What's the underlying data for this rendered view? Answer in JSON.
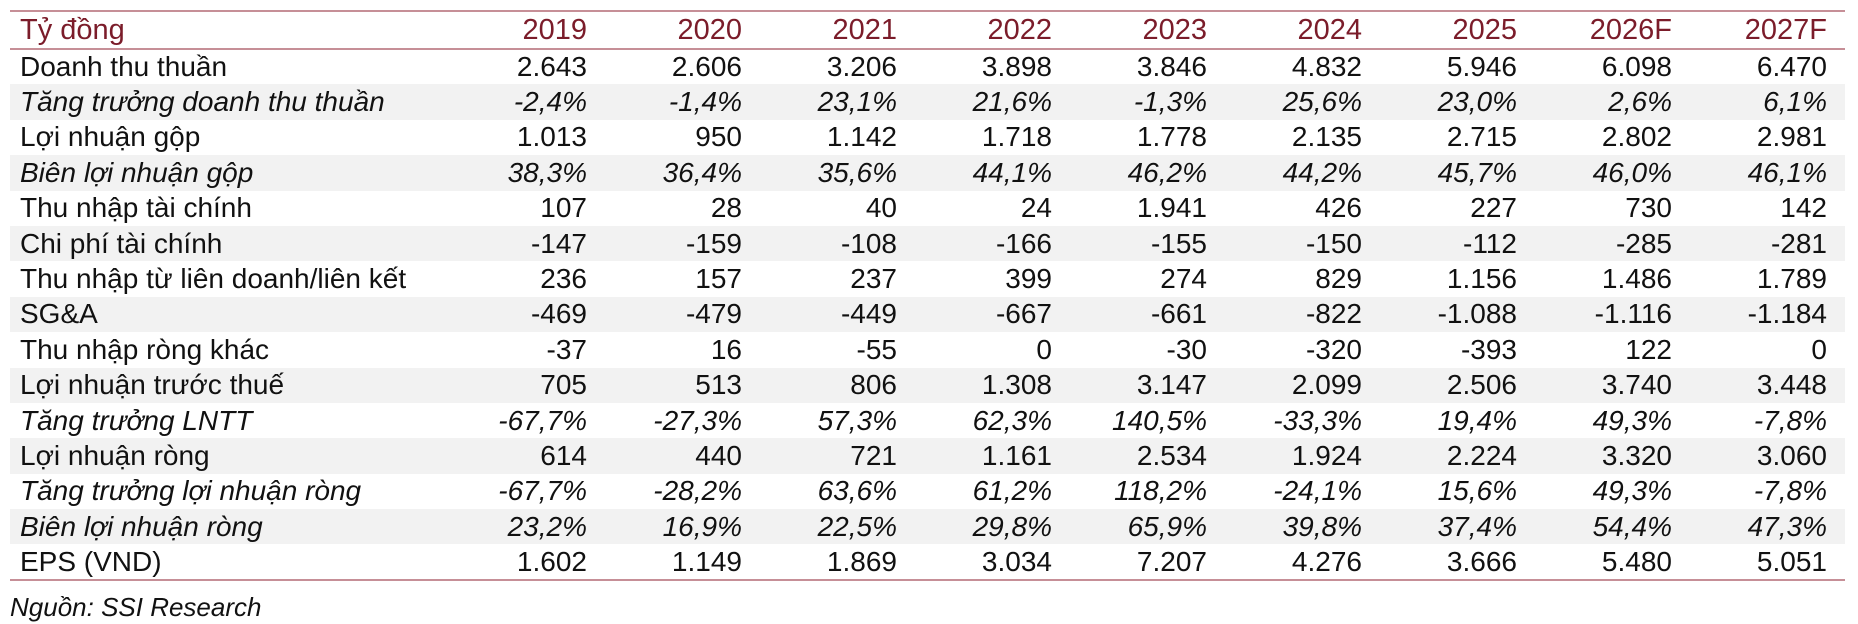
{
  "table": {
    "header": {
      "label": "Tỷ đồng",
      "years": [
        "2019",
        "2020",
        "2021",
        "2022",
        "2023",
        "2024",
        "2025",
        "2026F",
        "2027F"
      ]
    },
    "rows": [
      {
        "label": "Doanh thu thuần",
        "italic": false,
        "values": [
          "2.643",
          "2.606",
          "3.206",
          "3.898",
          "3.846",
          "4.832",
          "5.946",
          "6.098",
          "6.470"
        ]
      },
      {
        "label": "Tăng trưởng doanh thu thuần",
        "italic": true,
        "values": [
          "-2,4%",
          "-1,4%",
          "23,1%",
          "21,6%",
          "-1,3%",
          "25,6%",
          "23,0%",
          "2,6%",
          "6,1%"
        ]
      },
      {
        "label": "Lợi nhuận gộp",
        "italic": false,
        "values": [
          "1.013",
          "950",
          "1.142",
          "1.718",
          "1.778",
          "2.135",
          "2.715",
          "2.802",
          "2.981"
        ]
      },
      {
        "label": "Biên lợi nhuận gộp",
        "italic": true,
        "values": [
          "38,3%",
          "36,4%",
          "35,6%",
          "44,1%",
          "46,2%",
          "44,2%",
          "45,7%",
          "46,0%",
          "46,1%"
        ]
      },
      {
        "label": "Thu nhập tài chính",
        "italic": false,
        "values": [
          "107",
          "28",
          "40",
          "24",
          "1.941",
          "426",
          "227",
          "730",
          "142"
        ]
      },
      {
        "label": "Chi phí tài chính",
        "italic": false,
        "values": [
          "-147",
          "-159",
          "-108",
          "-166",
          "-155",
          "-150",
          "-112",
          "-285",
          "-281"
        ]
      },
      {
        "label": "Thu nhập từ liên doanh/liên kết",
        "italic": false,
        "values": [
          "236",
          "157",
          "237",
          "399",
          "274",
          "829",
          "1.156",
          "1.486",
          "1.789"
        ]
      },
      {
        "label": "SG&A",
        "italic": false,
        "values": [
          "-469",
          "-479",
          "-449",
          "-667",
          "-661",
          "-822",
          "-1.088",
          "-1.116",
          "-1.184"
        ]
      },
      {
        "label": "Thu nhập ròng khác",
        "italic": false,
        "values": [
          "-37",
          "16",
          "-55",
          "0",
          "-30",
          "-320",
          "-393",
          "122",
          "0"
        ]
      },
      {
        "label": "Lợi nhuận trước thuế",
        "italic": false,
        "values": [
          "705",
          "513",
          "806",
          "1.308",
          "3.147",
          "2.099",
          "2.506",
          "3.740",
          "3.448"
        ]
      },
      {
        "label": "Tăng trưởng LNTT",
        "italic": true,
        "values": [
          "-67,7%",
          "-27,3%",
          "57,3%",
          "62,3%",
          "140,5%",
          "-33,3%",
          "19,4%",
          "49,3%",
          "-7,8%"
        ]
      },
      {
        "label": "Lợi nhuận ròng",
        "italic": false,
        "values": [
          "614",
          "440",
          "721",
          "1.161",
          "2.534",
          "1.924",
          "2.224",
          "3.320",
          "3.060"
        ]
      },
      {
        "label": "Tăng trưởng lợi nhuận ròng",
        "italic": true,
        "values": [
          "-67,7%",
          "-28,2%",
          "63,6%",
          "61,2%",
          "118,2%",
          "-24,1%",
          "15,6%",
          "49,3%",
          "-7,8%"
        ]
      },
      {
        "label": "Biên lợi nhuận ròng",
        "italic": true,
        "values": [
          "23,2%",
          "16,9%",
          "22,5%",
          "29,8%",
          "65,9%",
          "39,8%",
          "37,4%",
          "54,4%",
          "47,3%"
        ]
      },
      {
        "label": "EPS (VND)",
        "italic": false,
        "values": [
          "1.602",
          "1.149",
          "1.869",
          "3.034",
          "7.207",
          "4.276",
          "3.666",
          "5.480",
          "5.051"
        ]
      }
    ]
  },
  "source": "Nguồn: SSI Research",
  "colors": {
    "header_text": "#7b1c2a",
    "rule": "#c68f97",
    "row_shade": "#f2f2f2"
  }
}
